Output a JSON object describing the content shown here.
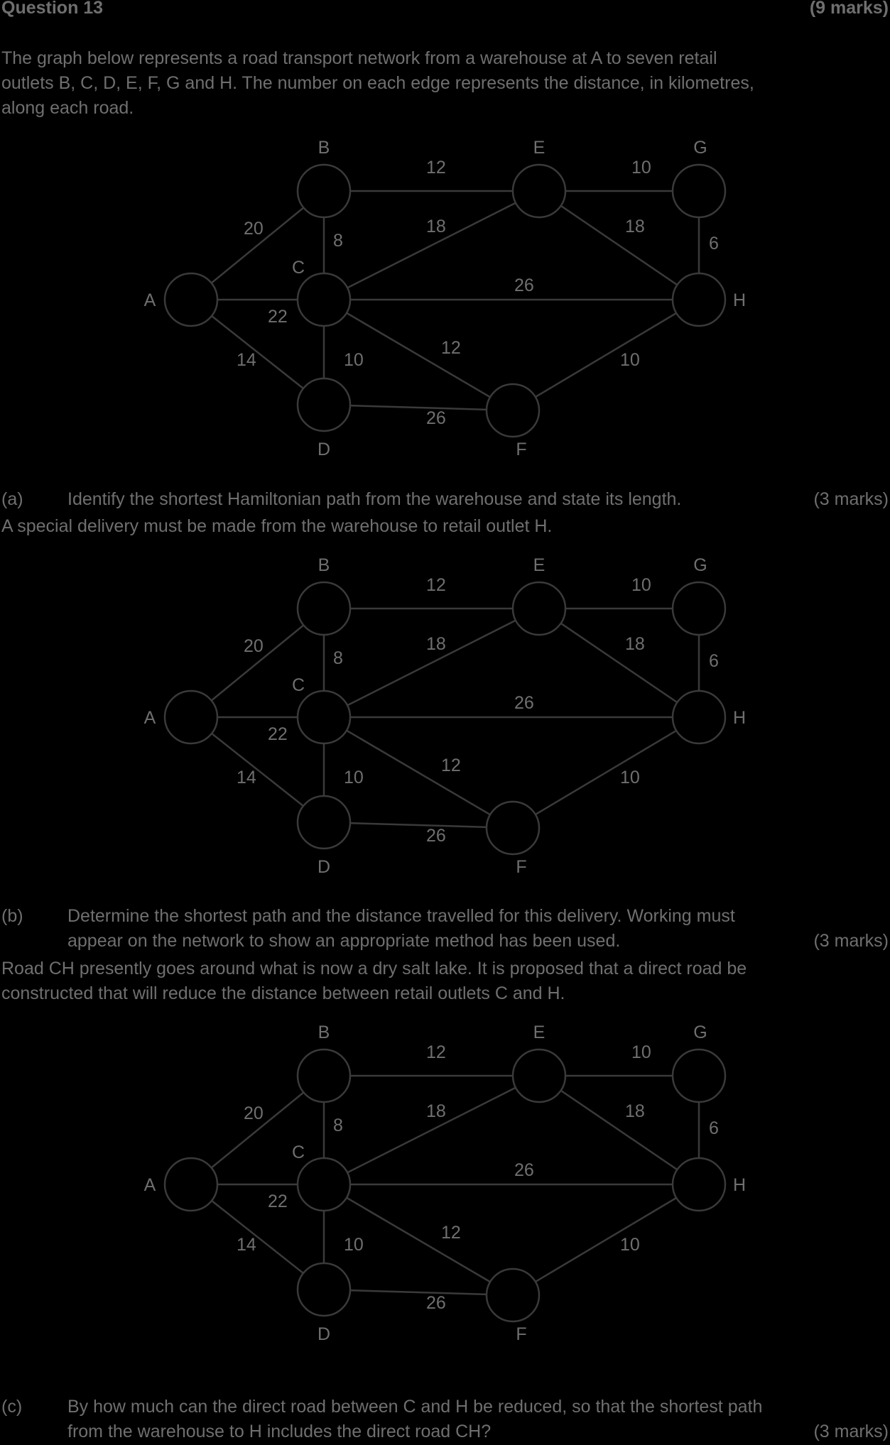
{
  "question": {
    "title": "Question 13",
    "marks": "(9 marks)",
    "intro": [
      "The graph below represents a road transport network from a warehouse at A to seven retail",
      "outlets B, C, D, E, F, G and H. The number on each edge represents the distance, in kilometres,",
      "along each road."
    ]
  },
  "graph": {
    "nodes": [
      {
        "id": "A"
      },
      {
        "id": "B"
      },
      {
        "id": "C"
      },
      {
        "id": "D"
      },
      {
        "id": "E"
      },
      {
        "id": "F"
      },
      {
        "id": "G"
      },
      {
        "id": "H"
      }
    ],
    "edges": [
      {
        "from": "A",
        "to": "B",
        "weight": "20"
      },
      {
        "from": "A",
        "to": "C",
        "weight": "22"
      },
      {
        "from": "A",
        "to": "D",
        "weight": "14"
      },
      {
        "from": "B",
        "to": "C",
        "weight": "8"
      },
      {
        "from": "B",
        "to": "E",
        "weight": "12"
      },
      {
        "from": "C",
        "to": "E",
        "weight": "18"
      },
      {
        "from": "C",
        "to": "H",
        "weight": "26"
      },
      {
        "from": "C",
        "to": "F",
        "weight": "12"
      },
      {
        "from": "C",
        "to": "D",
        "weight": "10"
      },
      {
        "from": "D",
        "to": "F",
        "weight": "26"
      },
      {
        "from": "E",
        "to": "G",
        "weight": "10"
      },
      {
        "from": "E",
        "to": "H",
        "weight": "18"
      },
      {
        "from": "G",
        "to": "H",
        "weight": "6"
      },
      {
        "from": "F",
        "to": "H",
        "weight": "10"
      }
    ]
  },
  "part_a": {
    "label": "(a)",
    "text": "Identify the shortest Hamiltonian path from the warehouse and state its length.",
    "marks": "(3 marks)",
    "followup": "A special delivery must be made from the warehouse to retail outlet H."
  },
  "part_b": {
    "label": "(b)",
    "line1": "Determine the shortest path and the distance travelled for this delivery. Working must",
    "line2": "appear on the network to show an appropriate method has been used.",
    "marks": "(3 marks)",
    "followup": [
      "Road CH presently goes around what is now a dry salt lake. It is proposed that a direct road be",
      "constructed that will reduce the distance between retail outlets C and H."
    ]
  },
  "part_c": {
    "label": "(c)",
    "line1": "By how much can the direct road between C and H be reduced, so that the shortest path",
    "line2": "from the warehouse to H includes the direct road CH?",
    "marks": "(3 marks)"
  }
}
